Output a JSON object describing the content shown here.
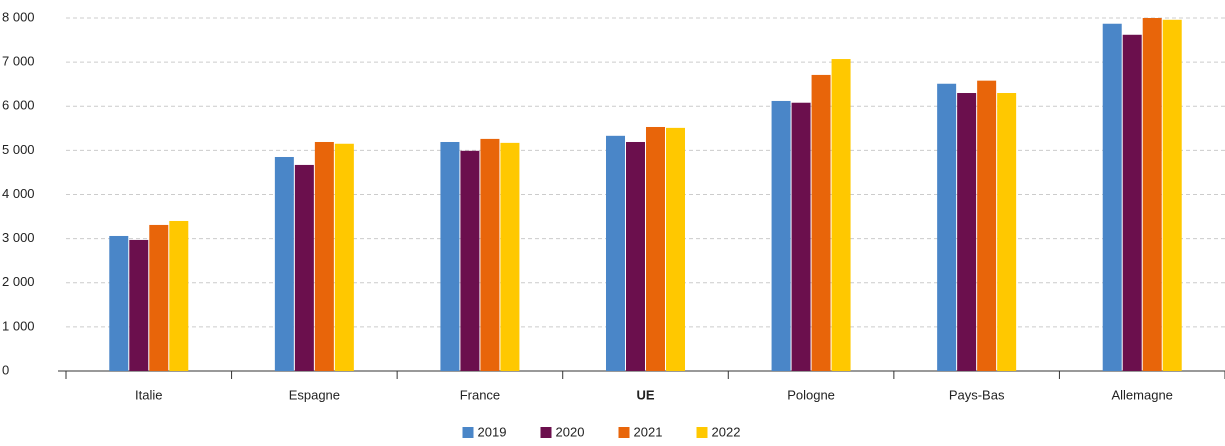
{
  "chart_data": {
    "type": "bar",
    "categories": [
      "Italie",
      "Espagne",
      "France",
      "UE",
      "Pologne",
      "Pays-Bas",
      "Allemagne"
    ],
    "series": [
      {
        "name": "2019",
        "color": "#4a86c8",
        "values": [
          3060,
          4850,
          5190,
          5330,
          6120,
          6510,
          7870
        ]
      },
      {
        "name": "2020",
        "color": "#6b0f4d",
        "values": [
          2970,
          4670,
          4990,
          5190,
          6080,
          6300,
          7620
        ]
      },
      {
        "name": "2021",
        "color": "#e8650a",
        "values": [
          3310,
          5190,
          5260,
          5530,
          6710,
          6580,
          8000
        ]
      },
      {
        "name": "2022",
        "color": "#ffc800",
        "values": [
          3400,
          5150,
          5170,
          5510,
          7070,
          6300,
          7960
        ]
      }
    ],
    "ylim": [
      0,
      8000
    ],
    "yticks": [
      0,
      {
        "value": 1000,
        "label": "1 000"
      },
      {
        "value": 2000,
        "label": "2 000"
      },
      {
        "value": 3000,
        "label": "3 000"
      },
      {
        "value": 4000,
        "label": "4 000"
      },
      {
        "value": 5000,
        "label": "5 000"
      },
      {
        "value": 6000,
        "label": "6 000"
      },
      {
        "value": 7000,
        "label": "7 000"
      },
      {
        "value": 8000,
        "label": "8 000"
      }
    ],
    "grid": true,
    "legend": "bottom"
  }
}
